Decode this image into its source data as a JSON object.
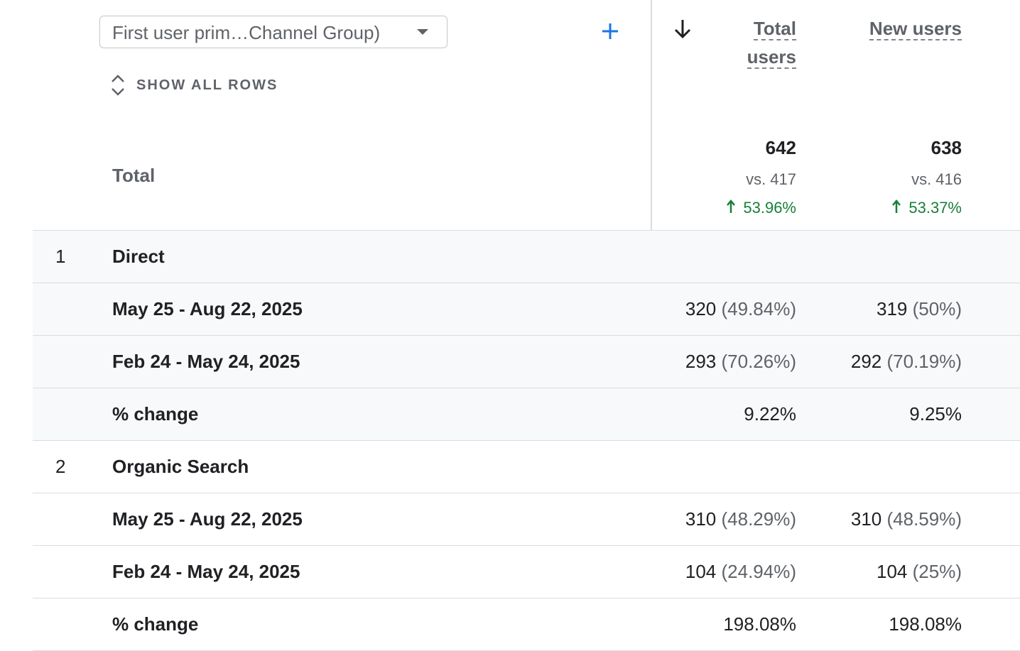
{
  "header": {
    "dimension_selector": "First user prim…Channel Group)",
    "show_all_rows": "SHOW ALL ROWS",
    "columns": [
      "Total users",
      "New users"
    ]
  },
  "totals": {
    "label": "Total",
    "cells": [
      {
        "value": "642",
        "vs": "vs. 417",
        "change": "53.96%"
      },
      {
        "value": "638",
        "vs": "vs. 416",
        "change": "53.37%"
      }
    ]
  },
  "groups": [
    {
      "index": "1",
      "name": "Direct",
      "rows": [
        {
          "label": "May 25 - Aug 22, 2025",
          "cells": [
            {
              "value": "320",
              "share": "(49.84%)"
            },
            {
              "value": "319",
              "share": "(50%)"
            }
          ]
        },
        {
          "label": "Feb 24 - May 24, 2025",
          "cells": [
            {
              "value": "293",
              "share": "(70.26%)"
            },
            {
              "value": "292",
              "share": "(70.19%)"
            }
          ]
        },
        {
          "label": "% change",
          "cells": [
            {
              "value": "9.22%"
            },
            {
              "value": "9.25%"
            }
          ]
        }
      ]
    },
    {
      "index": "2",
      "name": "Organic Search",
      "rows": [
        {
          "label": "May 25 - Aug 22, 2025",
          "cells": [
            {
              "value": "310",
              "share": "(48.29%)"
            },
            {
              "value": "310",
              "share": "(48.59%)"
            }
          ]
        },
        {
          "label": "Feb 24 - May 24, 2025",
          "cells": [
            {
              "value": "104",
              "share": "(24.94%)"
            },
            {
              "value": "104",
              "share": "(25%)"
            }
          ]
        },
        {
          "label": "% change",
          "cells": [
            {
              "value": "198.08%"
            },
            {
              "value": "198.08%"
            }
          ]
        }
      ]
    }
  ]
}
